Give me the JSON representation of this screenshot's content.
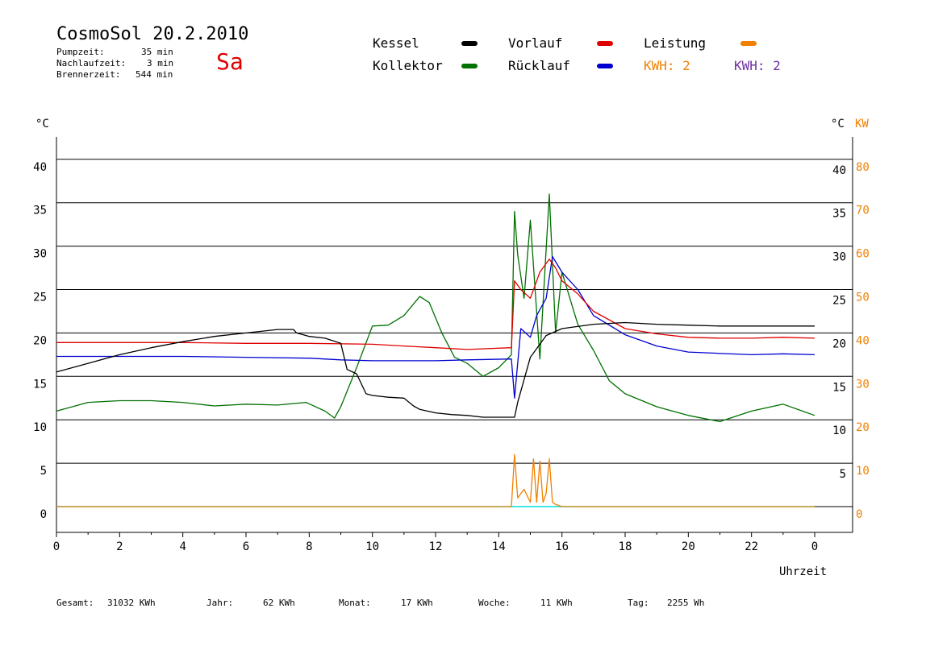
{
  "header": {
    "title": "CosmoSol 20.2.2010",
    "day": "Sa",
    "pumpzeit_label": "Pumpzeit:",
    "pumpzeit_value": "35 min",
    "nachlauf_label": "Nachlaufzeit:",
    "nachlauf_value": "3 min",
    "brenner_label": "Brennerzeit:",
    "brenner_value": "544 min"
  },
  "legend": {
    "kessel": "Kessel",
    "kollektor": "Kollektor",
    "vorlauf": "Vorlauf",
    "ruecklauf": "Rücklauf",
    "leistung": "Leistung",
    "kwh1": "KWH: 2",
    "kwh2": "KWH: 2"
  },
  "colors": {
    "kessel": "#000000",
    "kollektor": "#007000",
    "vorlauf": "#e00000",
    "ruecklauf": "#0000d0",
    "leistung": "#f08000",
    "kwh2": "#7030a0",
    "pump": "#00e0e0"
  },
  "axis": {
    "left_unit": "°C",
    "right_unit": "°C",
    "right_unit2": "KW",
    "xlabel": "Uhrzeit"
  },
  "footer": {
    "gesamt_label": "Gesamt:",
    "gesamt_value": "31032 KWh",
    "jahr_label": "Jahr:",
    "jahr_value": "62 KWh",
    "monat_label": "Monat:",
    "monat_value": "17 KWh",
    "woche_label": "Woche:",
    "woche_value": "11 KWh",
    "tag_label": "Tag:",
    "tag_value": "2255 Wh"
  },
  "chart_data": {
    "type": "line",
    "title": "CosmoSol 20.2.2010",
    "xlabel": "Uhrzeit",
    "ylabel": "°C",
    "xlim": [
      0,
      24
    ],
    "ylim": [
      0,
      40
    ],
    "y2lim": [
      0,
      80
    ],
    "x_ticks": [
      "0",
      "2",
      "4",
      "6",
      "8",
      "10",
      "12",
      "14",
      "16",
      "18",
      "20",
      "22",
      "0"
    ],
    "y_ticks": [
      "0",
      "5",
      "10",
      "15",
      "20",
      "25",
      "30",
      "35",
      "40"
    ],
    "y_right_ticks": [
      "5",
      "10",
      "15",
      "20",
      "25",
      "30",
      "35",
      "40"
    ],
    "y2_ticks": [
      "0",
      "10",
      "20",
      "30",
      "40",
      "50",
      "60",
      "70",
      "80"
    ],
    "grid": true,
    "series": [
      {
        "name": "Kessel",
        "x": [
          0,
          1,
          2,
          3,
          4,
          5,
          6,
          7,
          7.5,
          7.6,
          8.0,
          8.5,
          9.0,
          9.2,
          9.5,
          9.8,
          10.0,
          10.5,
          11.0,
          11.3,
          11.5,
          12.0,
          12.5,
          13.0,
          13.5,
          14.5,
          14.6,
          15.0,
          15.5,
          16.0,
          17.0,
          18.0,
          19.0,
          20.0,
          21.0,
          22.0,
          23.0,
          24.0
        ],
        "y": [
          15.5,
          16.5,
          17.5,
          18.3,
          19.0,
          19.6,
          20.0,
          20.4,
          20.4,
          20.0,
          19.6,
          19.4,
          18.8,
          15.8,
          15.3,
          13.0,
          12.8,
          12.6,
          12.5,
          11.6,
          11.2,
          10.8,
          10.6,
          10.5,
          10.3,
          10.3,
          12.0,
          17.2,
          19.7,
          20.5,
          21.0,
          21.2,
          21.0,
          20.9,
          20.8,
          20.8,
          20.8,
          20.8
        ]
      },
      {
        "name": "Kollektor",
        "x": [
          0,
          1,
          2,
          3,
          4,
          5,
          6,
          7,
          7.9,
          8.5,
          8.8,
          9.0,
          9.5,
          10.0,
          10.5,
          11.0,
          11.5,
          11.8,
          12.2,
          12.6,
          13.0,
          13.5,
          14.0,
          14.4,
          14.5,
          14.6,
          14.8,
          15.0,
          15.3,
          15.6,
          15.8,
          16.0,
          16.5,
          17.0,
          17.5,
          18.0,
          19.0,
          20.0,
          21.0,
          22.0,
          23.0,
          24.0
        ],
        "y": [
          11.0,
          12.0,
          12.2,
          12.2,
          12.0,
          11.6,
          11.8,
          11.7,
          12.0,
          11.0,
          10.2,
          11.5,
          16.0,
          20.8,
          20.9,
          22.0,
          24.2,
          23.5,
          20.0,
          17.2,
          16.5,
          15.0,
          16.0,
          17.5,
          34.0,
          29.0,
          24.0,
          33.0,
          17.0,
          36.0,
          20.0,
          27.0,
          21.0,
          18.0,
          14.5,
          13.0,
          11.5,
          10.5,
          9.8,
          11.0,
          11.8,
          10.5
        ]
      },
      {
        "name": "Vorlauf",
        "x": [
          0,
          2,
          4,
          6,
          8,
          10,
          11,
          12,
          13,
          14.4,
          14.5,
          14.7,
          15.0,
          15.3,
          15.6,
          15.8,
          16.0,
          16.5,
          17.0,
          18.0,
          19.0,
          20.0,
          21.0,
          22.0,
          23.0,
          24.0
        ],
        "y": [
          18.9,
          18.9,
          18.9,
          18.8,
          18.8,
          18.7,
          18.5,
          18.3,
          18.1,
          18.3,
          26.0,
          25.0,
          24.0,
          27.0,
          28.5,
          27.5,
          26.0,
          24.5,
          22.5,
          20.5,
          19.9,
          19.5,
          19.4,
          19.4,
          19.5,
          19.4
        ]
      },
      {
        "name": "Rücklauf",
        "x": [
          0,
          2,
          4,
          6,
          8,
          9,
          10,
          11,
          12,
          13,
          14.4,
          14.5,
          14.7,
          15.0,
          15.2,
          15.5,
          15.7,
          16.0,
          16.5,
          17.0,
          18.0,
          19.0,
          20.0,
          22.0,
          23.0,
          24.0
        ],
        "y": [
          17.3,
          17.3,
          17.3,
          17.2,
          17.1,
          16.9,
          16.8,
          16.8,
          16.8,
          16.9,
          17.0,
          12.5,
          20.5,
          19.5,
          22.0,
          24.0,
          28.8,
          27.0,
          25.0,
          22.0,
          19.8,
          18.5,
          17.8,
          17.5,
          17.6,
          17.5
        ]
      },
      {
        "name": "Leistung",
        "x": [
          0,
          14.3,
          14.4,
          14.5,
          14.6,
          14.8,
          15.0,
          15.1,
          15.2,
          15.3,
          15.4,
          15.5,
          15.6,
          15.7,
          15.8,
          16.0,
          16.5,
          24.0
        ],
        "y": [
          0,
          0,
          0,
          12.0,
          2.0,
          4.0,
          1.0,
          11.0,
          1.0,
          10.5,
          1.0,
          3.0,
          11.0,
          1.0,
          0.5,
          0,
          0,
          0
        ]
      }
    ]
  }
}
